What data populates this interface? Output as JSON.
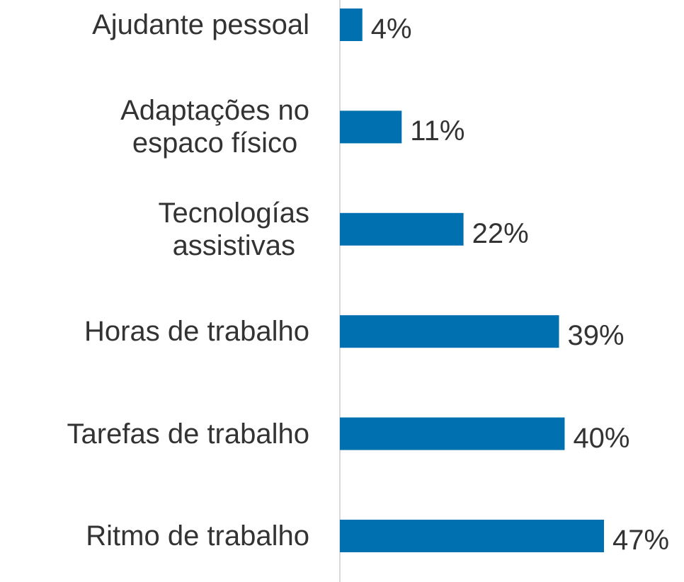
{
  "chart_data": {
    "type": "barh",
    "categories": [
      "Ajudante pessoal",
      "Adaptações no\nespaco físico",
      "Tecnologías\nassistivas",
      "Horas de trabalho",
      "Tarefas de trabalho",
      "Ritmo de trabalho"
    ],
    "values": [
      4,
      11,
      22,
      39,
      40,
      47
    ],
    "value_labels": [
      "4%",
      "11%",
      "22%",
      "39%",
      "40%",
      "47%"
    ],
    "color": "#0070b0"
  }
}
